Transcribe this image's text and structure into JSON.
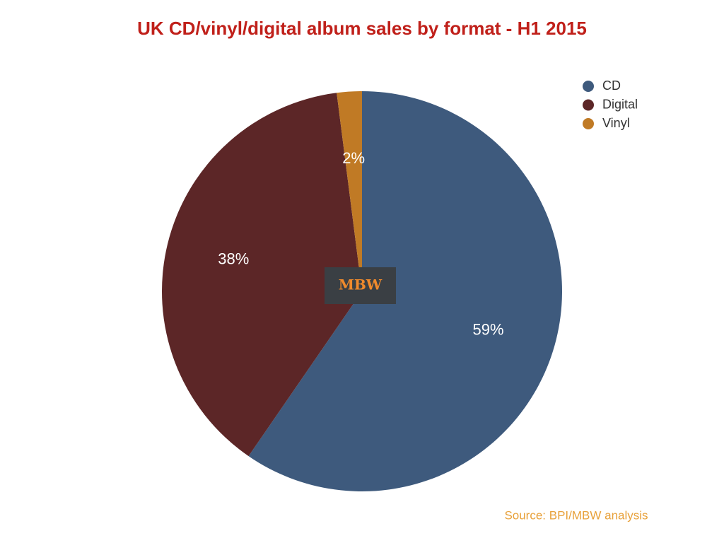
{
  "chart_data": {
    "type": "pie",
    "title": "UK CD/vinyl/digital album sales by format - H1 2015",
    "categories": [
      "CD",
      "Digital",
      "Vinyl"
    ],
    "values": [
      59,
      38,
      2
    ],
    "value_labels": [
      "59%",
      "38%",
      "2%"
    ],
    "colors": [
      "#3e5a7d",
      "#5c2627",
      "#c07a25"
    ],
    "legend": "top-right",
    "source": "Source: BPI/MBW analysis"
  },
  "logo": "MBW"
}
